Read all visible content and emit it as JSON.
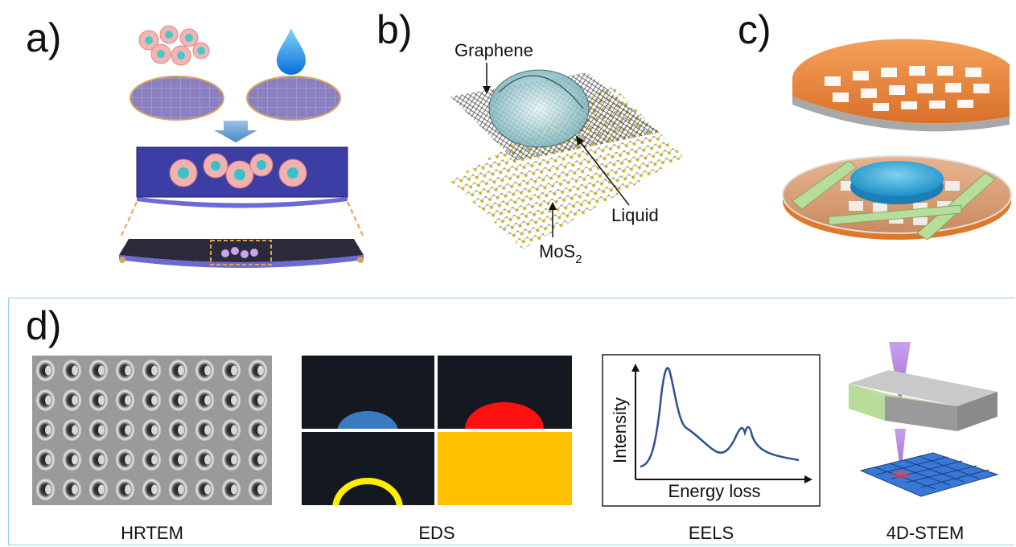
{
  "panels": {
    "a": {
      "label": "a)"
    },
    "b": {
      "label": "b)",
      "graphene": "Graphene",
      "liquid": "Liquid",
      "mos2_main": "MoS",
      "mos2_sub": "2"
    },
    "c": {
      "label": "c)"
    },
    "d": {
      "label": "d)",
      "hrtem": "HRTEM",
      "eds": "EDS",
      "eels": "EELS",
      "eels_xlabel": "Energy loss",
      "eels_ylabel": "Intensity",
      "stem": "4D-STEM"
    }
  },
  "colors": {
    "grid_purple": "#9b8fc4",
    "copper": "#e8873a",
    "eds_blue": "#3a7ac0",
    "eds_red": "#ff1010",
    "eds_yellow": "#ffee00",
    "eds_orange": "#ffc000",
    "eels_line": "#2f4f8f",
    "frame_border": "#8fd0e0"
  }
}
